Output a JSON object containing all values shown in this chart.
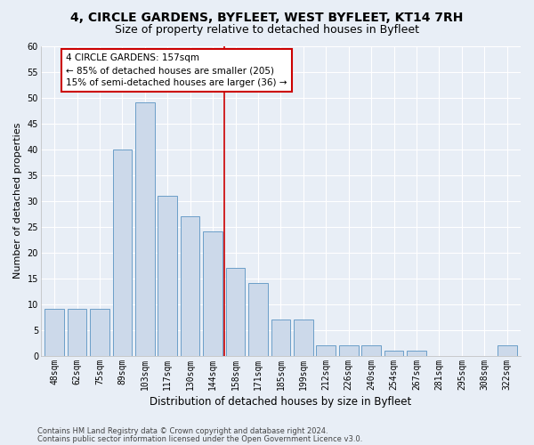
{
  "title1": "4, CIRCLE GARDENS, BYFLEET, WEST BYFLEET, KT14 7RH",
  "title2": "Size of property relative to detached houses in Byfleet",
  "xlabel": "Distribution of detached houses by size in Byfleet",
  "ylabel": "Number of detached properties",
  "categories": [
    "48sqm",
    "62sqm",
    "75sqm",
    "89sqm",
    "103sqm",
    "117sqm",
    "130sqm",
    "144sqm",
    "158sqm",
    "171sqm",
    "185sqm",
    "199sqm",
    "212sqm",
    "226sqm",
    "240sqm",
    "254sqm",
    "267sqm",
    "281sqm",
    "295sqm",
    "308sqm",
    "322sqm"
  ],
  "values": [
    9,
    9,
    9,
    40,
    49,
    31,
    27,
    24,
    17,
    14,
    7,
    7,
    2,
    2,
    2,
    1,
    1,
    0,
    0,
    0,
    2
  ],
  "bar_color": "#ccd9ea",
  "bar_edge_color": "#6b9ec8",
  "red_line_index": 8,
  "annotation_line1": "4 CIRCLE GARDENS: 157sqm",
  "annotation_line2": "← 85% of detached houses are smaller (205)",
  "annotation_line3": "15% of semi-detached houses are larger (36) →",
  "annotation_box_facecolor": "#ffffff",
  "annotation_box_edgecolor": "#cc0000",
  "ylim": [
    0,
    60
  ],
  "yticks": [
    0,
    5,
    10,
    15,
    20,
    25,
    30,
    35,
    40,
    45,
    50,
    55,
    60
  ],
  "footer1": "Contains HM Land Registry data © Crown copyright and database right 2024.",
  "footer2": "Contains public sector information licensed under the Open Government Licence v3.0.",
  "background_color": "#e8eef6",
  "plot_bg_color": "#e8eef6",
  "grid_color": "#ffffff",
  "title_fontsize": 10,
  "subtitle_fontsize": 9,
  "tick_fontsize": 7,
  "ylabel_fontsize": 8,
  "xlabel_fontsize": 8.5,
  "footer_fontsize": 6,
  "annotation_fontsize": 7.5
}
